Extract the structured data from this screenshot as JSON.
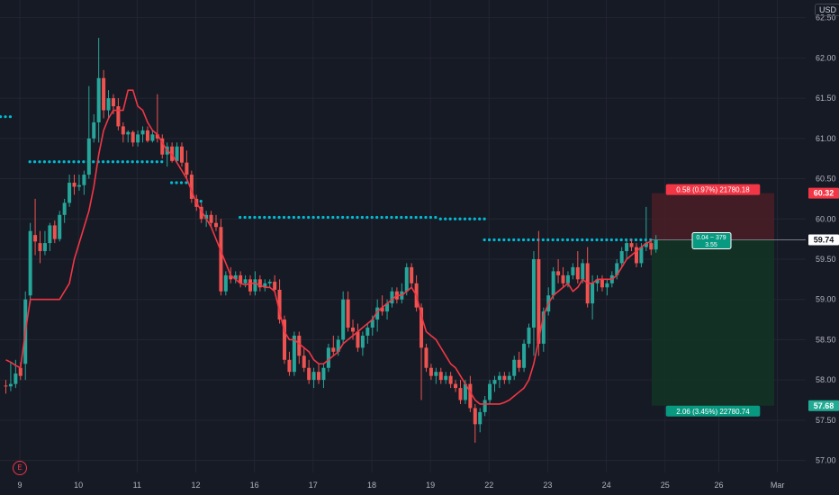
{
  "currency": "USD",
  "event_marker": "E",
  "colors": {
    "background": "#161a25",
    "grid": "#232632",
    "up": "#26a69a",
    "down": "#ef5350",
    "ma_line": "#f23645",
    "dots": "#00bcd4",
    "axis_text": "#b2b5be",
    "stop_zone": "#4a1f26",
    "target_zone": "#123525"
  },
  "chart_data": {
    "type": "candlestick",
    "title": "",
    "xlabel": "",
    "ylabel": "",
    "ylim": [
      56.85,
      62.72
    ],
    "grid": true,
    "y_ticks": [
      "62.50",
      "62.00",
      "61.50",
      "61.00",
      "60.50",
      "60.00",
      "59.50",
      "59.00",
      "58.50",
      "58.00",
      "57.50",
      "57.00"
    ],
    "x_ticks": [
      "9",
      "10",
      "11",
      "12",
      "16",
      "17",
      "18",
      "19",
      "22",
      "23",
      "24",
      "25",
      "26",
      "Mar"
    ],
    "price_labels": [
      {
        "text": "60.32",
        "value": 60.32,
        "color": "#f23645"
      },
      {
        "text": "59.74",
        "value": 59.74,
        "color": "#d1d4dc"
      },
      {
        "text": "57.68",
        "value": 57.68,
        "color": "#22ab94"
      }
    ],
    "position": {
      "entry": 59.74,
      "stop": 60.32,
      "target": 57.68,
      "stop_label": "0.58 (0.97%) 21780.18",
      "center_label_1": "0.04 ~ 379",
      "center_label_2": "3.55",
      "target_label": "2.06 (3.45%) 22780.74"
    },
    "candles": [
      {
        "o": 57.93,
        "h": 58.0,
        "l": 57.83,
        "c": 57.92
      },
      {
        "o": 57.92,
        "h": 58.22,
        "l": 57.86,
        "c": 57.95
      },
      {
        "o": 57.95,
        "h": 58.25,
        "l": 57.9,
        "c": 58.08
      },
      {
        "o": 58.15,
        "h": 58.22,
        "l": 58.0,
        "c": 58.05
      },
      {
        "o": 58.2,
        "h": 59.1,
        "l": 58.0,
        "c": 59.0
      },
      {
        "o": 59.05,
        "h": 59.95,
        "l": 58.95,
        "c": 59.85
      },
      {
        "o": 59.8,
        "h": 60.25,
        "l": 59.55,
        "c": 59.72
      },
      {
        "o": 59.7,
        "h": 59.85,
        "l": 59.45,
        "c": 59.6
      },
      {
        "o": 59.6,
        "h": 59.85,
        "l": 59.55,
        "c": 59.7
      },
      {
        "o": 59.7,
        "h": 59.95,
        "l": 59.6,
        "c": 59.92
      },
      {
        "o": 59.92,
        "h": 59.98,
        "l": 59.7,
        "c": 59.75
      },
      {
        "o": 59.75,
        "h": 60.1,
        "l": 59.72,
        "c": 60.05
      },
      {
        "o": 60.05,
        "h": 60.25,
        "l": 59.95,
        "c": 60.2
      },
      {
        "o": 60.2,
        "h": 60.55,
        "l": 60.15,
        "c": 60.45
      },
      {
        "o": 60.45,
        "h": 60.55,
        "l": 60.3,
        "c": 60.4
      },
      {
        "o": 60.4,
        "h": 60.55,
        "l": 60.35,
        "c": 60.42
      },
      {
        "o": 60.42,
        "h": 60.6,
        "l": 60.3,
        "c": 60.55
      },
      {
        "o": 60.55,
        "h": 61.65,
        "l": 60.5,
        "c": 61.0
      },
      {
        "o": 61.0,
        "h": 61.3,
        "l": 60.95,
        "c": 61.2
      },
      {
        "o": 61.2,
        "h": 62.25,
        "l": 60.95,
        "c": 61.75
      },
      {
        "o": 61.75,
        "h": 61.85,
        "l": 61.25,
        "c": 61.35
      },
      {
        "o": 61.35,
        "h": 61.6,
        "l": 61.25,
        "c": 61.5
      },
      {
        "o": 61.5,
        "h": 61.55,
        "l": 61.3,
        "c": 61.4
      },
      {
        "o": 61.4,
        "h": 61.5,
        "l": 61.1,
        "c": 61.15
      },
      {
        "o": 61.15,
        "h": 61.2,
        "l": 60.95,
        "c": 61.05
      },
      {
        "o": 61.05,
        "h": 61.1,
        "l": 60.95,
        "c": 61.08
      },
      {
        "o": 61.08,
        "h": 61.1,
        "l": 60.9,
        "c": 60.95
      },
      {
        "o": 60.95,
        "h": 61.1,
        "l": 60.9,
        "c": 61.05
      },
      {
        "o": 61.05,
        "h": 61.15,
        "l": 60.95,
        "c": 61.1
      },
      {
        "o": 61.1,
        "h": 61.15,
        "l": 60.95,
        "c": 60.97
      },
      {
        "o": 60.97,
        "h": 61.1,
        "l": 60.95,
        "c": 61.05
      },
      {
        "o": 61.05,
        "h": 61.55,
        "l": 60.95,
        "c": 61.0
      },
      {
        "o": 61.0,
        "h": 61.05,
        "l": 60.75,
        "c": 60.8
      },
      {
        "o": 60.8,
        "h": 60.95,
        "l": 60.65,
        "c": 60.9
      },
      {
        "o": 60.9,
        "h": 60.95,
        "l": 60.7,
        "c": 60.72
      },
      {
        "o": 60.72,
        "h": 60.95,
        "l": 60.7,
        "c": 60.9
      },
      {
        "o": 60.9,
        "h": 60.95,
        "l": 60.65,
        "c": 60.7
      },
      {
        "o": 60.7,
        "h": 60.85,
        "l": 60.5,
        "c": 60.55
      },
      {
        "o": 60.55,
        "h": 60.6,
        "l": 60.2,
        "c": 60.25
      },
      {
        "o": 60.25,
        "h": 60.3,
        "l": 60.1,
        "c": 60.15
      },
      {
        "o": 60.15,
        "h": 60.2,
        "l": 59.95,
        "c": 60.0
      },
      {
        "o": 60.0,
        "h": 60.1,
        "l": 59.9,
        "c": 60.05
      },
      {
        "o": 60.05,
        "h": 60.1,
        "l": 59.9,
        "c": 59.95
      },
      {
        "o": 59.95,
        "h": 60.05,
        "l": 59.85,
        "c": 59.9
      },
      {
        "o": 59.9,
        "h": 60.0,
        "l": 59.05,
        "c": 59.1
      },
      {
        "o": 59.1,
        "h": 59.35,
        "l": 59.05,
        "c": 59.3
      },
      {
        "o": 59.3,
        "h": 59.4,
        "l": 59.2,
        "c": 59.25
      },
      {
        "o": 59.25,
        "h": 59.35,
        "l": 59.2,
        "c": 59.3
      },
      {
        "o": 59.3,
        "h": 59.35,
        "l": 59.15,
        "c": 59.2
      },
      {
        "o": 59.2,
        "h": 59.3,
        "l": 59.15,
        "c": 59.25
      },
      {
        "o": 59.25,
        "h": 59.3,
        "l": 59.05,
        "c": 59.1
      },
      {
        "o": 59.1,
        "h": 59.35,
        "l": 59.05,
        "c": 59.25
      },
      {
        "o": 59.25,
        "h": 59.3,
        "l": 59.1,
        "c": 59.15
      },
      {
        "o": 59.15,
        "h": 59.25,
        "l": 59.1,
        "c": 59.2
      },
      {
        "o": 59.2,
        "h": 59.25,
        "l": 59.15,
        "c": 59.22
      },
      {
        "o": 59.22,
        "h": 59.3,
        "l": 59.1,
        "c": 59.12
      },
      {
        "o": 59.12,
        "h": 59.25,
        "l": 58.7,
        "c": 58.75
      },
      {
        "o": 58.75,
        "h": 58.8,
        "l": 58.2,
        "c": 58.25
      },
      {
        "o": 58.25,
        "h": 58.35,
        "l": 58.05,
        "c": 58.1
      },
      {
        "o": 58.1,
        "h": 58.6,
        "l": 58.05,
        "c": 58.55
      },
      {
        "o": 58.55,
        "h": 58.6,
        "l": 58.2,
        "c": 58.3
      },
      {
        "o": 58.3,
        "h": 58.4,
        "l": 58.1,
        "c": 58.15
      },
      {
        "o": 58.15,
        "h": 58.25,
        "l": 57.95,
        "c": 58.0
      },
      {
        "o": 58.0,
        "h": 58.15,
        "l": 57.9,
        "c": 58.1
      },
      {
        "o": 58.1,
        "h": 58.2,
        "l": 57.95,
        "c": 58.0
      },
      {
        "o": 58.0,
        "h": 58.2,
        "l": 57.9,
        "c": 58.15
      },
      {
        "o": 58.15,
        "h": 58.45,
        "l": 58.1,
        "c": 58.4
      },
      {
        "o": 58.4,
        "h": 58.55,
        "l": 58.3,
        "c": 58.35
      },
      {
        "o": 58.35,
        "h": 58.55,
        "l": 58.3,
        "c": 58.5
      },
      {
        "o": 58.5,
        "h": 59.1,
        "l": 58.45,
        "c": 59.0
      },
      {
        "o": 59.0,
        "h": 59.1,
        "l": 58.6,
        "c": 58.65
      },
      {
        "o": 58.65,
        "h": 58.75,
        "l": 58.5,
        "c": 58.6
      },
      {
        "o": 58.6,
        "h": 58.7,
        "l": 58.35,
        "c": 58.4
      },
      {
        "o": 58.4,
        "h": 58.6,
        "l": 58.3,
        "c": 58.55
      },
      {
        "o": 58.55,
        "h": 58.7,
        "l": 58.45,
        "c": 58.65
      },
      {
        "o": 58.65,
        "h": 58.8,
        "l": 58.55,
        "c": 58.75
      },
      {
        "o": 58.75,
        "h": 59.0,
        "l": 58.6,
        "c": 58.9
      },
      {
        "o": 58.9,
        "h": 59.05,
        "l": 58.8,
        "c": 58.85
      },
      {
        "o": 58.85,
        "h": 59.0,
        "l": 58.75,
        "c": 58.95
      },
      {
        "o": 58.95,
        "h": 59.15,
        "l": 58.9,
        "c": 59.1
      },
      {
        "o": 59.1,
        "h": 59.15,
        "l": 58.95,
        "c": 59.0
      },
      {
        "o": 59.0,
        "h": 59.2,
        "l": 58.95,
        "c": 59.1
      },
      {
        "o": 59.1,
        "h": 59.45,
        "l": 59.05,
        "c": 59.4
      },
      {
        "o": 59.4,
        "h": 59.45,
        "l": 59.15,
        "c": 59.2
      },
      {
        "o": 59.2,
        "h": 59.3,
        "l": 58.85,
        "c": 58.9
      },
      {
        "o": 58.9,
        "h": 58.95,
        "l": 57.75,
        "c": 58.4
      },
      {
        "o": 58.4,
        "h": 58.45,
        "l": 58.1,
        "c": 58.15
      },
      {
        "o": 58.15,
        "h": 58.2,
        "l": 58.0,
        "c": 58.05
      },
      {
        "o": 58.05,
        "h": 58.15,
        "l": 57.95,
        "c": 58.1
      },
      {
        "o": 58.1,
        "h": 58.15,
        "l": 57.95,
        "c": 58.0
      },
      {
        "o": 58.0,
        "h": 58.1,
        "l": 57.95,
        "c": 58.05
      },
      {
        "o": 58.05,
        "h": 58.1,
        "l": 57.9,
        "c": 57.95
      },
      {
        "o": 57.95,
        "h": 58.0,
        "l": 57.85,
        "c": 57.9
      },
      {
        "o": 57.9,
        "h": 58.0,
        "l": 57.7,
        "c": 57.75
      },
      {
        "o": 57.75,
        "h": 58.0,
        "l": 57.7,
        "c": 57.95
      },
      {
        "o": 57.95,
        "h": 58.05,
        "l": 57.6,
        "c": 57.65
      },
      {
        "o": 57.65,
        "h": 57.7,
        "l": 57.22,
        "c": 57.45
      },
      {
        "o": 57.45,
        "h": 57.65,
        "l": 57.35,
        "c": 57.6
      },
      {
        "o": 57.6,
        "h": 57.8,
        "l": 57.55,
        "c": 57.75
      },
      {
        "o": 57.75,
        "h": 58.0,
        "l": 57.7,
        "c": 57.95
      },
      {
        "o": 57.95,
        "h": 58.05,
        "l": 57.85,
        "c": 58.0
      },
      {
        "o": 58.0,
        "h": 58.1,
        "l": 57.9,
        "c": 58.05
      },
      {
        "o": 58.05,
        "h": 58.1,
        "l": 57.95,
        "c": 58.0
      },
      {
        "o": 58.0,
        "h": 58.1,
        "l": 57.95,
        "c": 58.05
      },
      {
        "o": 58.05,
        "h": 58.3,
        "l": 58.0,
        "c": 58.25
      },
      {
        "o": 58.25,
        "h": 58.35,
        "l": 58.1,
        "c": 58.15
      },
      {
        "o": 58.15,
        "h": 58.5,
        "l": 58.1,
        "c": 58.45
      },
      {
        "o": 58.45,
        "h": 58.7,
        "l": 58.4,
        "c": 58.65
      },
      {
        "o": 58.65,
        "h": 59.6,
        "l": 58.3,
        "c": 59.5
      },
      {
        "o": 59.5,
        "h": 59.85,
        "l": 58.3,
        "c": 58.45
      },
      {
        "o": 58.45,
        "h": 58.9,
        "l": 58.35,
        "c": 58.85
      },
      {
        "o": 58.85,
        "h": 59.15,
        "l": 58.8,
        "c": 59.05
      },
      {
        "o": 59.05,
        "h": 59.4,
        "l": 59.0,
        "c": 59.35
      },
      {
        "o": 59.35,
        "h": 59.5,
        "l": 59.2,
        "c": 59.3
      },
      {
        "o": 59.3,
        "h": 59.4,
        "l": 59.15,
        "c": 59.2
      },
      {
        "o": 59.2,
        "h": 59.35,
        "l": 59.15,
        "c": 59.3
      },
      {
        "o": 59.3,
        "h": 59.45,
        "l": 59.25,
        "c": 59.4
      },
      {
        "o": 59.4,
        "h": 59.6,
        "l": 59.2,
        "c": 59.25
      },
      {
        "o": 59.25,
        "h": 59.5,
        "l": 59.2,
        "c": 59.45
      },
      {
        "o": 59.45,
        "h": 59.65,
        "l": 58.9,
        "c": 58.95
      },
      {
        "o": 58.95,
        "h": 59.3,
        "l": 58.75,
        "c": 59.2
      },
      {
        "o": 59.2,
        "h": 59.3,
        "l": 59.1,
        "c": 59.25
      },
      {
        "o": 59.25,
        "h": 59.3,
        "l": 59.1,
        "c": 59.15
      },
      {
        "o": 59.15,
        "h": 59.25,
        "l": 59.05,
        "c": 59.2
      },
      {
        "o": 59.2,
        "h": 59.35,
        "l": 59.15,
        "c": 59.3
      },
      {
        "o": 59.3,
        "h": 59.5,
        "l": 59.25,
        "c": 59.45
      },
      {
        "o": 59.45,
        "h": 59.65,
        "l": 59.4,
        "c": 59.6
      },
      {
        "o": 59.6,
        "h": 59.75,
        "l": 59.5,
        "c": 59.7
      },
      {
        "o": 59.7,
        "h": 59.75,
        "l": 59.6,
        "c": 59.65
      },
      {
        "o": 59.65,
        "h": 59.7,
        "l": 59.4,
        "c": 59.45
      },
      {
        "o": 59.45,
        "h": 59.7,
        "l": 59.4,
        "c": 59.65
      },
      {
        "o": 59.65,
        "h": 60.15,
        "l": 59.6,
        "c": 59.7
      },
      {
        "o": 59.7,
        "h": 59.75,
        "l": 59.55,
        "c": 59.62
      },
      {
        "o": 59.62,
        "h": 59.8,
        "l": 59.58,
        "c": 59.74
      }
    ],
    "series": [
      {
        "type": "line",
        "values": [
          58.25,
          58.22,
          58.18,
          58.15,
          58.6,
          59.0,
          59.0,
          59.0,
          59.0,
          59.0,
          59.0,
          59.0,
          59.1,
          59.2,
          59.5,
          59.7,
          59.9,
          60.1,
          60.4,
          60.8,
          61.1,
          61.25,
          61.35,
          61.35,
          61.35,
          61.6,
          61.6,
          61.4,
          61.35,
          61.2,
          61.1,
          61.05,
          60.95,
          60.85,
          60.8,
          60.7,
          60.6,
          60.5,
          60.35,
          60.2,
          60.1,
          60.0,
          59.9,
          59.75,
          59.6,
          59.45,
          59.3,
          59.25,
          59.2,
          59.18,
          59.2,
          59.2,
          59.18,
          59.15,
          59.15,
          59.1,
          58.85,
          58.6,
          58.5,
          58.5,
          58.45,
          58.4,
          58.35,
          58.25,
          58.2,
          58.2,
          58.25,
          58.3,
          58.35,
          58.45,
          58.5,
          58.55,
          58.6,
          58.65,
          58.7,
          58.75,
          58.85,
          58.9,
          58.95,
          59.0,
          59.05,
          59.05,
          59.1,
          59.15,
          59.05,
          58.8,
          58.6,
          58.55,
          58.5,
          58.4,
          58.3,
          58.2,
          58.15,
          58.05,
          57.95,
          57.85,
          57.75,
          57.7,
          57.7,
          57.7,
          57.7,
          57.7,
          57.72,
          57.75,
          57.8,
          57.85,
          57.9,
          58.0,
          58.2,
          58.5,
          58.8,
          58.95,
          59.05,
          59.1,
          59.15,
          59.2,
          59.1,
          59.15,
          59.25,
          59.2,
          59.2,
          59.25,
          59.25,
          59.25,
          59.25,
          59.3,
          59.4,
          59.5,
          59.55,
          59.6,
          59.65,
          59.7,
          59.72
        ]
      },
      {
        "type": "dots",
        "segments": [
          {
            "value": 61.27,
            "from": -4,
            "to": 1
          },
          {
            "value": 60.71,
            "from": 5,
            "to": 32
          },
          {
            "value": 60.45,
            "from": 34,
            "to": 37
          },
          {
            "value": 60.41,
            "from": 38,
            "to": 38
          },
          {
            "value": 60.22,
            "from": 39,
            "to": 40
          },
          {
            "value": 60.02,
            "from": 48,
            "to": 88
          },
          {
            "value": 60.0,
            "from": 89,
            "to": 98
          },
          {
            "value": 59.74,
            "from": 98,
            "to": 132
          }
        ]
      }
    ]
  }
}
